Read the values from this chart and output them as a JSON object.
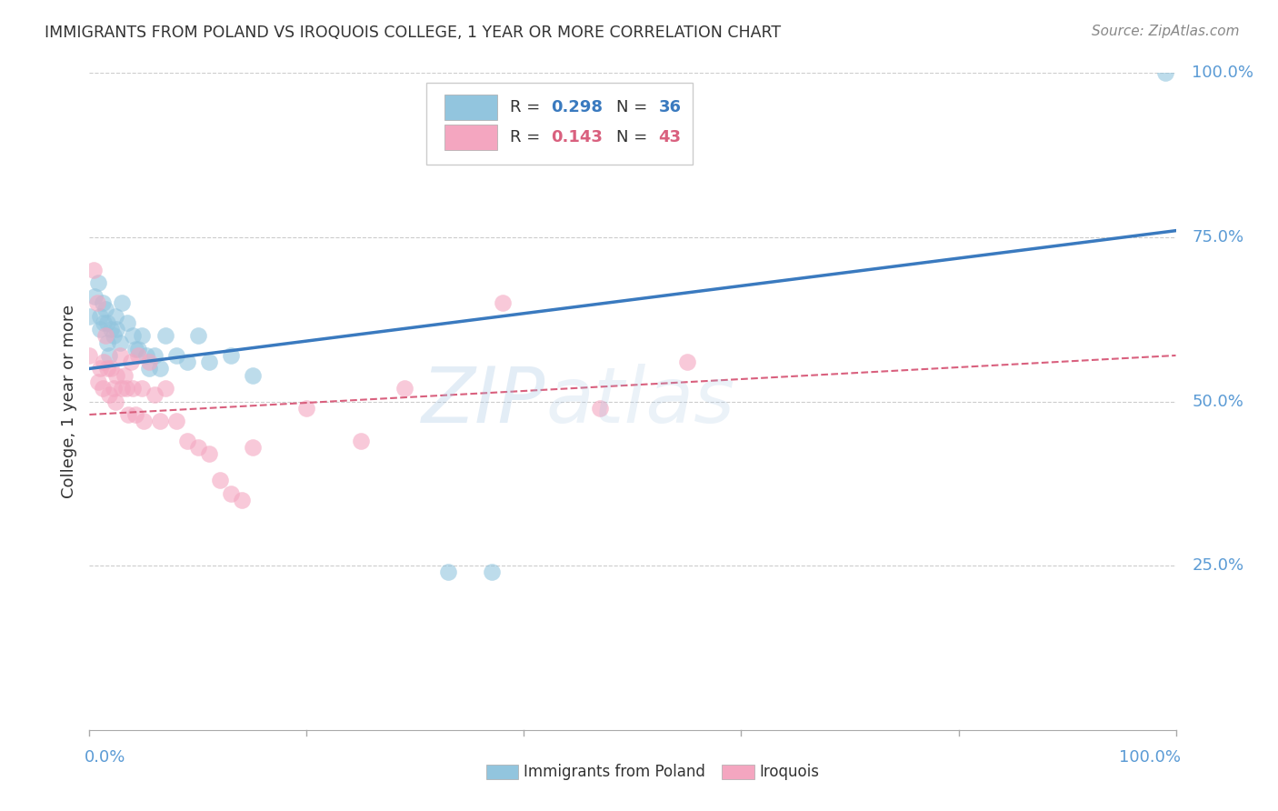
{
  "title": "IMMIGRANTS FROM POLAND VS IROQUOIS COLLEGE, 1 YEAR OR MORE CORRELATION CHART",
  "source": "Source: ZipAtlas.com",
  "ylabel": "College, 1 year or more",
  "legend_blue_R": "0.298",
  "legend_blue_N": "36",
  "legend_pink_R": "0.143",
  "legend_pink_N": "43",
  "blue_color": "#92c5de",
  "pink_color": "#f4a6c0",
  "blue_line_color": "#3a7abf",
  "pink_line_color": "#d9607e",
  "watermark_text": "ZIP​atlas",
  "blue_scatter_x": [
    0.0,
    0.005,
    0.008,
    0.01,
    0.01,
    0.012,
    0.013,
    0.015,
    0.016,
    0.016,
    0.018,
    0.02,
    0.022,
    0.024,
    0.025,
    0.028,
    0.03,
    0.035,
    0.04,
    0.042,
    0.045,
    0.048,
    0.052,
    0.055,
    0.06,
    0.065,
    0.07,
    0.08,
    0.09,
    0.1,
    0.11,
    0.13,
    0.15,
    0.33,
    0.37,
    0.99
  ],
  "blue_scatter_y": [
    0.63,
    0.66,
    0.68,
    0.63,
    0.61,
    0.65,
    0.62,
    0.64,
    0.59,
    0.62,
    0.57,
    0.61,
    0.6,
    0.63,
    0.61,
    0.59,
    0.65,
    0.62,
    0.6,
    0.58,
    0.58,
    0.6,
    0.57,
    0.55,
    0.57,
    0.55,
    0.6,
    0.57,
    0.56,
    0.6,
    0.56,
    0.57,
    0.54,
    0.24,
    0.24,
    1.0
  ],
  "pink_scatter_x": [
    0.0,
    0.004,
    0.007,
    0.008,
    0.01,
    0.012,
    0.013,
    0.015,
    0.016,
    0.018,
    0.02,
    0.022,
    0.024,
    0.025,
    0.028,
    0.03,
    0.032,
    0.034,
    0.036,
    0.038,
    0.04,
    0.042,
    0.045,
    0.048,
    0.05,
    0.055,
    0.06,
    0.065,
    0.07,
    0.08,
    0.09,
    0.1,
    0.11,
    0.12,
    0.13,
    0.14,
    0.15,
    0.2,
    0.25,
    0.29,
    0.38,
    0.47,
    0.55
  ],
  "pink_scatter_y": [
    0.57,
    0.7,
    0.65,
    0.53,
    0.55,
    0.52,
    0.56,
    0.6,
    0.55,
    0.51,
    0.55,
    0.52,
    0.5,
    0.54,
    0.57,
    0.52,
    0.54,
    0.52,
    0.48,
    0.56,
    0.52,
    0.48,
    0.57,
    0.52,
    0.47,
    0.56,
    0.51,
    0.47,
    0.52,
    0.47,
    0.44,
    0.43,
    0.42,
    0.38,
    0.36,
    0.35,
    0.43,
    0.49,
    0.44,
    0.52,
    0.65,
    0.49,
    0.56
  ],
  "blue_line_x0": 0.0,
  "blue_line_x1": 1.0,
  "blue_line_y0": 0.55,
  "blue_line_y1": 0.76,
  "pink_line_x0": 0.0,
  "pink_line_x1": 1.0,
  "pink_line_y0": 0.48,
  "pink_line_y1": 0.57,
  "xlim": [
    0.0,
    1.0
  ],
  "ylim": [
    0.0,
    1.0
  ],
  "ytick_positions": [
    0.25,
    0.5,
    0.75,
    1.0
  ],
  "ytick_labels": [
    "25.0%",
    "50.0%",
    "75.0%",
    "100.0%"
  ],
  "xtick_labels_left": "0.0%",
  "xtick_labels_right": "100.0%",
  "background_color": "#ffffff",
  "grid_color": "#cccccc",
  "title_color": "#333333",
  "tick_label_color": "#5b9bd5",
  "ylabel_color": "#333333"
}
